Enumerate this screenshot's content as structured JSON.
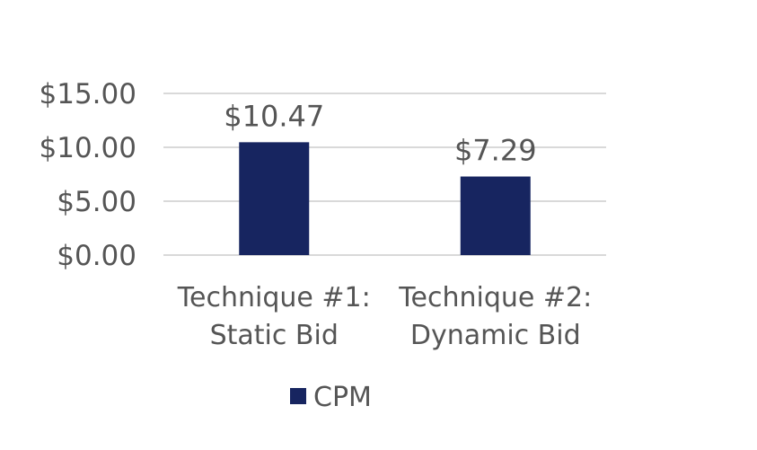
{
  "colors": {
    "bar": "#172560",
    "text": "#555555",
    "grid": "#d9d9d9"
  },
  "chart_data": {
    "type": "bar",
    "categories": [
      [
        "Technique #1:",
        "Static Bid"
      ],
      [
        "Technique #2:",
        "Dynamic Bid"
      ]
    ],
    "series": [
      {
        "name": "CPM",
        "values": [
          10.47,
          7.29
        ],
        "data_labels": [
          "$10.47",
          "$7.29"
        ]
      }
    ],
    "y_ticks": [
      {
        "value": 0,
        "label": "$0.00"
      },
      {
        "value": 5,
        "label": "$5.00"
      },
      {
        "value": 10,
        "label": "$10.00"
      },
      {
        "value": 15,
        "label": "$15.00"
      }
    ],
    "ylim": [
      0,
      15
    ],
    "grid": true,
    "legend_position": "bottom"
  }
}
